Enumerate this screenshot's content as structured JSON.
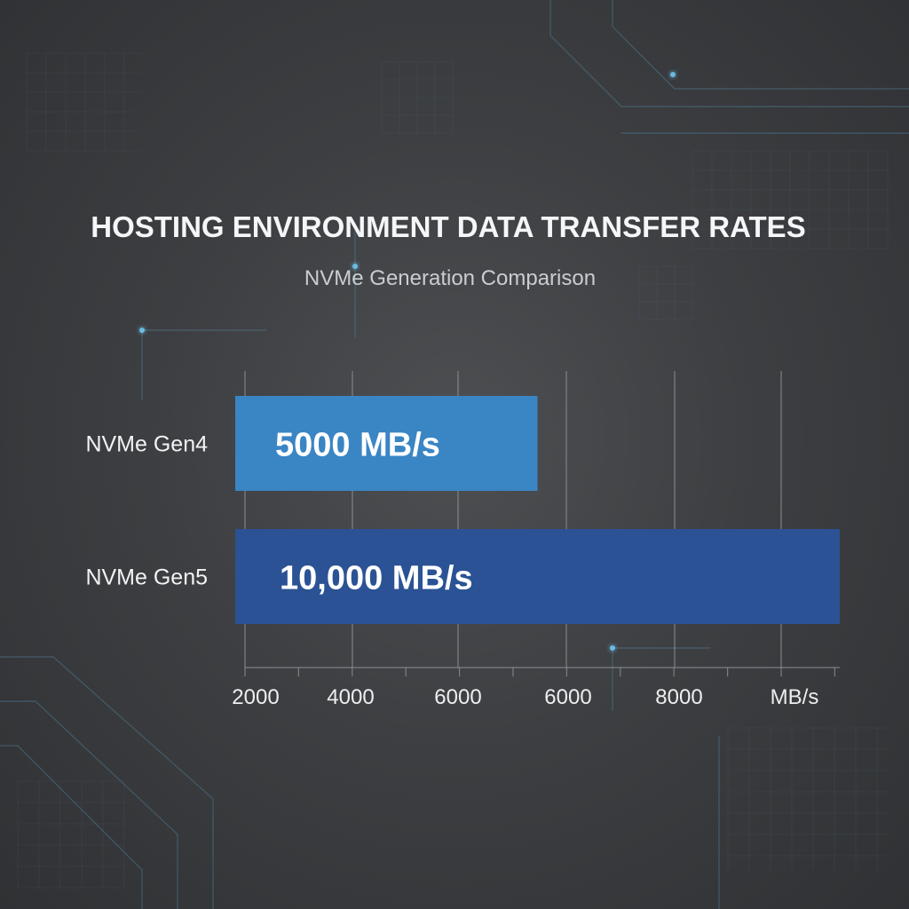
{
  "title": "HOSTING ENVIRONMENT DATA TRANSFER RATES",
  "subtitle": "NVMe Generation Comparison",
  "colors": {
    "bar_gen4": "#3a85c4",
    "bar_gen5": "#2b5294",
    "grid": "#8c9096",
    "circuit": "#5d8fb0",
    "glow": "#6fc7f0"
  },
  "chart_data": {
    "type": "bar",
    "orientation": "horizontal",
    "title": "HOSTING ENVIRONMENT DATA TRANSFER RATES",
    "subtitle": "NVMe Generation Comparison",
    "categories": [
      "NVMe Gen4",
      "NVMe Gen5"
    ],
    "series": [
      {
        "values": [
          5000,
          10000
        ],
        "data_labels": [
          "5000 MB/s",
          "10,000 MB/s"
        ],
        "colors": [
          "#3a85c4",
          "#2b5294"
        ]
      }
    ],
    "x_tick_labels": [
      "2000",
      "4000",
      "6000",
      "6000",
      "8000"
    ],
    "x_unit_label": "MB/s",
    "grid": true,
    "legend": "none"
  }
}
